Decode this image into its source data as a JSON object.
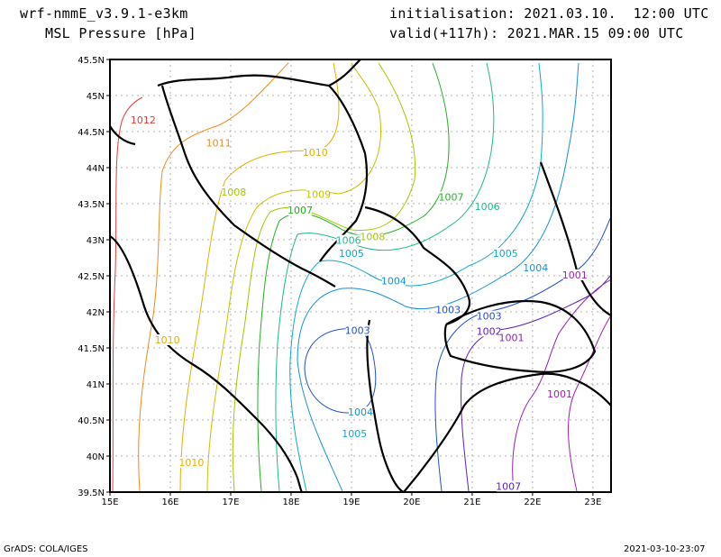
{
  "header": {
    "model": "wrf-nmmE_v3.9.1-e3km",
    "field": "MSL Pressure [hPa]",
    "init": "initialisation: 2021.03.10.  12:00 UTC",
    "valid": "valid(+117h): 2021.MAR.15 09:00 UTC"
  },
  "axes": {
    "x_ticks": [
      "15E",
      "16E",
      "17E",
      "18E",
      "19E",
      "20E",
      "21E",
      "22E",
      "23E"
    ],
    "y_ticks": [
      "45.5N",
      "45N",
      "44.5N",
      "44N",
      "43.5N",
      "43N",
      "42.5N",
      "42N",
      "41.5N",
      "41N",
      "40.5N",
      "40N",
      "39.5N"
    ]
  },
  "contour_labels": [
    {
      "text": "1012",
      "lon": 15.55,
      "lat": 44.65,
      "color": "#e0403a"
    },
    {
      "text": "1011",
      "lon": 16.8,
      "lat": 44.33,
      "color": "#f08a1c"
    },
    {
      "text": "1010",
      "lon": 18.4,
      "lat": 44.2,
      "color": "#e0b000"
    },
    {
      "text": "1009",
      "lon": 18.45,
      "lat": 43.62,
      "color": "#c8c000"
    },
    {
      "text": "1008",
      "lon": 17.05,
      "lat": 43.65,
      "color": "#a0c800"
    },
    {
      "text": "1008",
      "lon": 19.35,
      "lat": 43.03,
      "color": "#a0c800"
    },
    {
      "text": "1007",
      "lon": 18.15,
      "lat": 43.4,
      "color": "#22b022"
    },
    {
      "text": "1007",
      "lon": 20.65,
      "lat": 43.58,
      "color": "#22b022"
    },
    {
      "text": "1006",
      "lon": 18.95,
      "lat": 42.98,
      "color": "#1cb890"
    },
    {
      "text": "1006",
      "lon": 21.25,
      "lat": 43.45,
      "color": "#1cb890"
    },
    {
      "text": "1005",
      "lon": 19.0,
      "lat": 42.8,
      "color": "#10a8c8"
    },
    {
      "text": "1005",
      "lon": 21.55,
      "lat": 42.8,
      "color": "#10a8c8"
    },
    {
      "text": "1005",
      "lon": 19.05,
      "lat": 40.3,
      "color": "#10a8c8"
    },
    {
      "text": "1004",
      "lon": 19.7,
      "lat": 42.42,
      "color": "#1890d8"
    },
    {
      "text": "1004",
      "lon": 22.05,
      "lat": 42.6,
      "color": "#1890d8"
    },
    {
      "text": "1004",
      "lon": 19.15,
      "lat": 40.6,
      "color": "#1890d8"
    },
    {
      "text": "1003",
      "lon": 19.1,
      "lat": 41.73,
      "color": "#2050d0"
    },
    {
      "text": "1003",
      "lon": 20.6,
      "lat": 42.02,
      "color": "#2050d0"
    },
    {
      "text": "1003",
      "lon": 21.28,
      "lat": 41.93,
      "color": "#2050d0"
    },
    {
      "text": "1002",
      "lon": 21.28,
      "lat": 41.72,
      "color": "#6020c0"
    },
    {
      "text": "1001",
      "lon": 21.65,
      "lat": 41.63,
      "color": "#9020b8"
    },
    {
      "text": "1001",
      "lon": 22.7,
      "lat": 42.5,
      "color": "#a020b0"
    },
    {
      "text": "1001",
      "lon": 22.45,
      "lat": 40.85,
      "color": "#a020b0"
    },
    {
      "text": "1007",
      "lon": 21.6,
      "lat": 39.57,
      "color": "#6020c0"
    },
    {
      "text": "1010",
      "lon": 15.95,
      "lat": 41.6,
      "color": "#e8b000"
    },
    {
      "text": "1010",
      "lon": 16.35,
      "lat": 39.9,
      "color": "#e8b000"
    }
  ],
  "footer": {
    "left": "GrADS: COLA/IGES",
    "right": "2021-03-10-23:07"
  }
}
